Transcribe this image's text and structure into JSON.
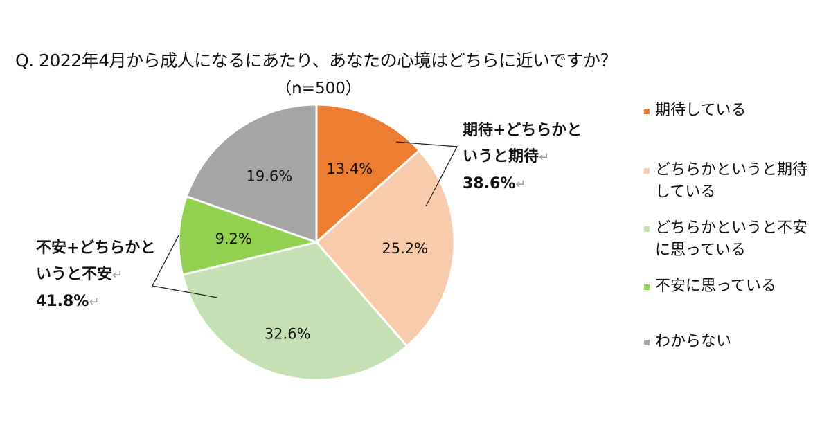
{
  "chart_data": {
    "type": "pie",
    "title": "Q. 2022年4月から成人になるにあたり、あなたの心境はどちらに近いですか？",
    "subtitle": "（n=500）",
    "legend_position": "right",
    "slices": [
      {
        "label": "期待している",
        "value": 13.4,
        "value_label": "13.4%",
        "color": "#ED7D31"
      },
      {
        "label": "どちらかというと期待している",
        "value": 25.2,
        "value_label": "25.2%",
        "color": "#F8CBAD"
      },
      {
        "label": "どちらかというと不安に思っている",
        "value": 32.6,
        "value_label": "32.6%",
        "color": "#C5E0B4"
      },
      {
        "label": "不安に思っている",
        "value": 9.2,
        "value_label": "9.2%",
        "color": "#92D050"
      },
      {
        "label": "わからない",
        "value": 19.6,
        "value_label": "19.6%",
        "color": "#A5A5A5"
      }
    ],
    "legend": [
      {
        "line1": "期待している",
        "line2": ""
      },
      {
        "line1": "どちらかというと期待",
        "line2": "している"
      },
      {
        "line1": "どちらかというと不安",
        "line2": "に思っている"
      },
      {
        "line1": "不安に思っている",
        "line2": ""
      },
      {
        "line1": "わからない",
        "line2": ""
      }
    ],
    "annotations": [
      {
        "line1": "期待+どちらかと",
        "line2": "いうと期待",
        "value": "38.6%"
      },
      {
        "line1": "不安+どちらかと",
        "line2": "いうと不安",
        "value": "41.8%"
      }
    ]
  }
}
